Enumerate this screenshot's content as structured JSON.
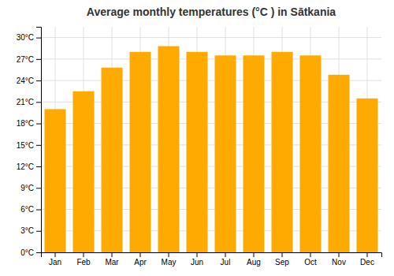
{
  "chart_data": {
    "type": "bar",
    "title": "Average monthly temperatures (°C ) in Sātkania",
    "categories": [
      "Jan",
      "Feb",
      "Mar",
      "Apr",
      "May",
      "Jun",
      "Jul",
      "Aug",
      "Sep",
      "Oct",
      "Nov",
      "Dec"
    ],
    "values": [
      20.0,
      22.5,
      25.8,
      28.0,
      28.8,
      28.0,
      27.5,
      27.5,
      28.0,
      27.5,
      24.8,
      21.5
    ],
    "color": "#FFAA00",
    "ylim": [
      0,
      31.5
    ],
    "yticks": [
      {
        "value": 0,
        "label": "0°C"
      },
      {
        "value": 3,
        "label": "3°C"
      },
      {
        "value": 6,
        "label": "6°C"
      },
      {
        "value": 9,
        "label": "9°C"
      },
      {
        "value": 12,
        "label": "12°C"
      },
      {
        "value": 15,
        "label": "15°C"
      },
      {
        "value": 18,
        "label": "18°C"
      },
      {
        "value": 21,
        "label": "21°C"
      },
      {
        "value": 24,
        "label": "24°C"
      },
      {
        "value": 27,
        "label": "27°C"
      },
      {
        "value": 30,
        "label": "30°C"
      }
    ],
    "grid": true
  }
}
